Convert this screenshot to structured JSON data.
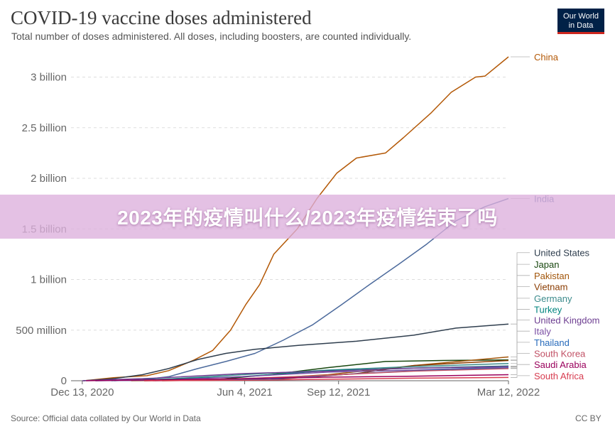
{
  "header": {
    "title": "COVID-19 vaccine doses administered",
    "subtitle": "Total number of doses administered. All doses, including boosters, are counted individually.",
    "logo_line1": "Our World",
    "logo_line2": "in Data"
  },
  "footer": {
    "source": "Source: Official data collated by Our World in Data",
    "license": "CC BY"
  },
  "banner": {
    "text": "2023年的疫情叫什么/2023年疫情结束了吗"
  },
  "colors": {
    "banner_bg": "#ddafdd",
    "grid": "#dddddd",
    "axis": "#666666"
  },
  "chart_data": {
    "type": "line",
    "title": "COVID-19 vaccine doses administered",
    "subtitle": "Total number of doses administered. All doses, including boosters, are counted individually.",
    "x_ticks": [
      "Dec 13, 2020",
      "Jun 4, 2021",
      "Sep 12, 2021",
      "Mar 12, 2022"
    ],
    "x_tick_positions": [
      "2020-12-13",
      "2021-06-04",
      "2021-09-12",
      "2022-03-12"
    ],
    "xlim": [
      "2020-12-01",
      "2022-03-12"
    ],
    "y_ticks": [
      0,
      500000000,
      1000000000,
      1500000000,
      2000000000,
      2500000000,
      3000000000
    ],
    "y_tick_labels": [
      "0",
      "500 million",
      "1 billion",
      "1.5 billion",
      "2 billion",
      "2.5 billion",
      "3 billion"
    ],
    "ylim": [
      0,
      3200000000
    ],
    "grid": true,
    "legend": "right (end-of-line labels)",
    "series": [
      {
        "name": "China",
        "color": "#b35806",
        "label_y": 3200000000,
        "points": [
          [
            "2020-12-15",
            0
          ],
          [
            "2021-01-15",
            30000000
          ],
          [
            "2021-02-20",
            50000000
          ],
          [
            "2021-03-15",
            100000000
          ],
          [
            "2021-04-10",
            200000000
          ],
          [
            "2021-05-01",
            300000000
          ],
          [
            "2021-05-20",
            500000000
          ],
          [
            "2021-06-05",
            750000000
          ],
          [
            "2021-06-20",
            950000000
          ],
          [
            "2021-07-05",
            1250000000
          ],
          [
            "2021-07-30",
            1500000000
          ],
          [
            "2021-08-20",
            1800000000
          ],
          [
            "2021-09-10",
            2050000000
          ],
          [
            "2021-10-01",
            2200000000
          ],
          [
            "2021-11-01",
            2250000000
          ],
          [
            "2021-11-20",
            2400000000
          ],
          [
            "2021-12-20",
            2650000000
          ],
          [
            "2022-01-10",
            2850000000
          ],
          [
            "2022-02-05",
            3000000000
          ],
          [
            "2022-02-15",
            3010000000
          ],
          [
            "2022-03-12",
            3200000000
          ]
        ]
      },
      {
        "name": "India",
        "color": "#4c6a9c",
        "label_y": 1800000000,
        "points": [
          [
            "2021-01-16",
            0
          ],
          [
            "2021-02-15",
            10000000
          ],
          [
            "2021-03-15",
            40000000
          ],
          [
            "2021-04-15",
            120000000
          ],
          [
            "2021-05-15",
            190000000
          ],
          [
            "2021-06-15",
            270000000
          ],
          [
            "2021-07-15",
            400000000
          ],
          [
            "2021-08-15",
            550000000
          ],
          [
            "2021-09-15",
            750000000
          ],
          [
            "2021-10-15",
            950000000
          ],
          [
            "2021-11-15",
            1150000000
          ],
          [
            "2021-12-15",
            1350000000
          ],
          [
            "2022-01-15",
            1580000000
          ],
          [
            "2022-02-15",
            1720000000
          ],
          [
            "2022-03-12",
            1800000000
          ]
        ]
      },
      {
        "name": "United States",
        "color": "#2f3e4e",
        "label_y": 1265000000,
        "points": [
          [
            "2020-12-14",
            0
          ],
          [
            "2021-01-15",
            20000000
          ],
          [
            "2021-02-15",
            60000000
          ],
          [
            "2021-03-15",
            120000000
          ],
          [
            "2021-04-15",
            210000000
          ],
          [
            "2021-05-15",
            270000000
          ],
          [
            "2021-06-15",
            310000000
          ],
          [
            "2021-08-01",
            350000000
          ],
          [
            "2021-10-01",
            390000000
          ],
          [
            "2021-12-01",
            450000000
          ],
          [
            "2022-01-15",
            520000000
          ],
          [
            "2022-03-12",
            560000000
          ]
        ]
      },
      {
        "name": "Japan",
        "color": "#18470f",
        "label_y": 1150000000,
        "points": [
          [
            "2021-02-17",
            0
          ],
          [
            "2021-05-01",
            10000000
          ],
          [
            "2021-07-01",
            60000000
          ],
          [
            "2021-09-01",
            130000000
          ],
          [
            "2021-11-01",
            190000000
          ],
          [
            "2022-01-01",
            200000000
          ],
          [
            "2022-03-12",
            205000000
          ]
        ]
      },
      {
        "name": "Pakistan",
        "color": "#a2560b",
        "label_y": 1040000000,
        "points": [
          [
            "2021-02-03",
            0
          ],
          [
            "2021-06-01",
            10000000
          ],
          [
            "2021-09-01",
            60000000
          ],
          [
            "2021-12-01",
            150000000
          ],
          [
            "2022-03-12",
            235000000
          ]
        ]
      },
      {
        "name": "Vietnam",
        "color": "#8a3b00",
        "label_y": 930000000,
        "points": [
          [
            "2021-03-08",
            0
          ],
          [
            "2021-07-01",
            10000000
          ],
          [
            "2021-10-01",
            70000000
          ],
          [
            "2021-12-01",
            150000000
          ],
          [
            "2022-03-12",
            200000000
          ]
        ]
      },
      {
        "name": "Germany",
        "color": "#3c8b8c",
        "label_y": 815000000,
        "points": [
          [
            "2020-12-27",
            0
          ],
          [
            "2021-03-01",
            10000000
          ],
          [
            "2021-06-01",
            60000000
          ],
          [
            "2021-09-01",
            105000000
          ],
          [
            "2021-12-01",
            140000000
          ],
          [
            "2022-03-12",
            170000000
          ]
        ]
      },
      {
        "name": "Turkey",
        "color": "#00847e",
        "label_y": 705000000,
        "points": [
          [
            "2021-01-13",
            0
          ],
          [
            "2021-06-01",
            40000000
          ],
          [
            "2021-09-01",
            100000000
          ],
          [
            "2021-12-01",
            125000000
          ],
          [
            "2022-03-12",
            145000000
          ]
        ]
      },
      {
        "name": "United Kingdom",
        "color": "#6d3e91",
        "label_y": 600000000,
        "points": [
          [
            "2020-12-13",
            0
          ],
          [
            "2021-03-01",
            25000000
          ],
          [
            "2021-06-01",
            70000000
          ],
          [
            "2021-09-01",
            95000000
          ],
          [
            "2021-12-01",
            125000000
          ],
          [
            "2022-03-12",
            140000000
          ]
        ]
      },
      {
        "name": "Italy",
        "color": "#7b4fa4",
        "label_y": 490000000,
        "points": [
          [
            "2020-12-27",
            0
          ],
          [
            "2021-03-01",
            5000000
          ],
          [
            "2021-06-01",
            40000000
          ],
          [
            "2021-09-01",
            85000000
          ],
          [
            "2021-12-01",
            105000000
          ],
          [
            "2022-03-12",
            135000000
          ]
        ]
      },
      {
        "name": "Thailand",
        "color": "#286bbb",
        "label_y": 380000000,
        "points": [
          [
            "2021-02-28",
            0
          ],
          [
            "2021-07-01",
            15000000
          ],
          [
            "2021-10-01",
            70000000
          ],
          [
            "2022-01-01",
            110000000
          ],
          [
            "2022-03-12",
            125000000
          ]
        ]
      },
      {
        "name": "South Korea",
        "color": "#c15065",
        "label_y": 270000000,
        "points": [
          [
            "2021-02-26",
            0
          ],
          [
            "2021-06-01",
            20000000
          ],
          [
            "2021-09-01",
            55000000
          ],
          [
            "2021-12-01",
            95000000
          ],
          [
            "2022-03-12",
            120000000
          ]
        ]
      },
      {
        "name": "Saudi Arabia",
        "color": "#9a005c",
        "label_y": 160000000,
        "points": [
          [
            "2020-12-17",
            0
          ],
          [
            "2021-06-01",
            20000000
          ],
          [
            "2021-09-01",
            35000000
          ],
          [
            "2021-12-01",
            45000000
          ],
          [
            "2022-03-12",
            60000000
          ]
        ]
      },
      {
        "name": "South Africa",
        "color": "#d73c50",
        "label_y": 50000000,
        "points": [
          [
            "2021-02-17",
            0
          ],
          [
            "2021-06-01",
            5000000
          ],
          [
            "2021-09-01",
            15000000
          ],
          [
            "2021-12-01",
            25000000
          ],
          [
            "2022-03-12",
            32000000
          ]
        ]
      }
    ]
  }
}
